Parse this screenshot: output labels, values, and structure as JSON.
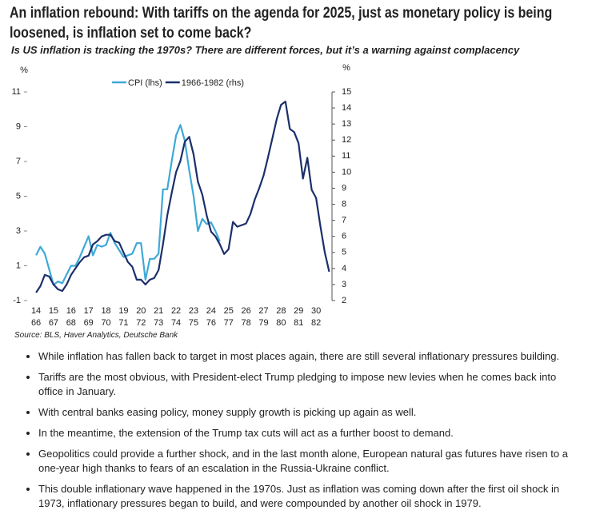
{
  "header": {
    "title": "An inflation rebound: With tariffs on the agenda for 2025, just as monetary policy is being loosened, is inflation set to come back?",
    "subtitle": "Is US inflation is tracking the 1970s? There are different forces, but it’s a warning against complacency"
  },
  "chart_data": {
    "type": "line",
    "y_label": "%",
    "y2_label": "%",
    "xlim": [
      13.86,
      30.91
    ],
    "xticks": [
      14,
      15,
      16,
      17,
      18,
      19,
      20,
      21,
      22,
      23,
      24,
      25,
      26,
      27,
      28,
      29,
      30
    ],
    "x2lim": [
      65.86,
      82.91
    ],
    "x2ticks": [
      66,
      67,
      68,
      69,
      70,
      71,
      72,
      73,
      74,
      75,
      76,
      77,
      78,
      79,
      80,
      81,
      82
    ],
    "ylim": [
      -1,
      11
    ],
    "yticks": [
      -1,
      1,
      3,
      5,
      7,
      9,
      11
    ],
    "y2lim": [
      2,
      15
    ],
    "y2ticks": [
      2,
      3,
      4,
      5,
      6,
      7,
      8,
      9,
      10,
      11,
      12,
      13,
      14,
      15
    ],
    "series": [
      {
        "name": "CPI (lhs)",
        "color": "#3fa9d6",
        "x": [
          14,
          14.25,
          14.5,
          14.75,
          15,
          15.25,
          15.5,
          15.75,
          16,
          16.25,
          16.5,
          16.75,
          17,
          17.25,
          17.5,
          17.75,
          18,
          18.25,
          18.5,
          18.75,
          19,
          19.25,
          19.5,
          19.75,
          20,
          20.25,
          20.5,
          20.75,
          21,
          21.25,
          21.5,
          21.75,
          22,
          22.25,
          22.5,
          22.75,
          23,
          23.25,
          23.5,
          23.75,
          24,
          24.25,
          24.5
        ],
        "values": [
          1.6,
          2.1,
          1.7,
          0.8,
          -0.1,
          0.1,
          0,
          0.5,
          1,
          1,
          1.5,
          2.1,
          2.7,
          1.6,
          2.2,
          2.1,
          2.2,
          2.9,
          2.3,
          1.9,
          1.5,
          1.6,
          1.7,
          2.3,
          2.3,
          0.2,
          1.4,
          1.4,
          1.7,
          5.4,
          5.4,
          7,
          8.5,
          9.1,
          8.2,
          6.5,
          5,
          3,
          3.7,
          3.4,
          3.5,
          3,
          2.4
        ]
      },
      {
        "name": "1966-1982 (rhs)",
        "color": "#1b2f6b",
        "axis": "y2",
        "x": [
          66,
          66.25,
          66.5,
          66.75,
          67,
          67.25,
          67.5,
          67.75,
          68,
          68.25,
          68.5,
          68.75,
          69,
          69.25,
          69.5,
          69.75,
          70,
          70.25,
          70.5,
          70.75,
          71,
          71.25,
          71.5,
          71.75,
          72,
          72.25,
          72.5,
          72.75,
          73,
          73.25,
          73.5,
          73.75,
          74,
          74.25,
          74.5,
          74.75,
          75,
          75.25,
          75.5,
          75.75,
          76,
          76.25,
          76.5,
          76.75,
          77,
          77.25,
          77.5,
          77.75,
          78,
          78.25,
          78.5,
          78.75,
          79,
          79.25,
          79.5,
          79.75,
          80,
          80.25,
          80.5,
          80.75,
          81,
          81.25,
          81.5,
          81.75,
          82,
          82.25,
          82.5,
          82.75
        ],
        "values": [
          2.5,
          2.9,
          3.6,
          3.5,
          3,
          2.7,
          2.6,
          3,
          3.6,
          4,
          4.4,
          4.7,
          4.8,
          5.5,
          5.7,
          6,
          6.1,
          6.1,
          5.7,
          5.6,
          5,
          4.4,
          4.1,
          3.3,
          3.3,
          3,
          3.3,
          3.4,
          3.9,
          5.5,
          7.3,
          8.7,
          10,
          10.7,
          11.9,
          12.2,
          11.1,
          9.4,
          8.6,
          7.3,
          6.3,
          6,
          5.5,
          4.9,
          5.2,
          6.9,
          6.6,
          6.7,
          6.8,
          7.4,
          8.3,
          9,
          9.8,
          10.9,
          12.1,
          13.3,
          14.2,
          14.4,
          12.7,
          12.5,
          11.8,
          9.6,
          10.9,
          8.9,
          8.4,
          6.6,
          5,
          3.8
        ]
      }
    ],
    "source": "Source: BLS, Haver Analytics, Deutsche Bank"
  },
  "bullets": [
    "While inflation has fallen back to target in most places again, there are still several inflationary pressures building.",
    "Tariffs are the most obvious, with President-elect Trump pledging to impose new levies when he comes back into office in January.",
    "With central banks easing policy, money supply growth is picking up again as well.",
    "In the meantime, the extension of the Trump tax cuts will act as a further boost to demand.",
    "Geopolitics could provide a further shock, and in the last month alone, European natural gas futures have risen to a one-year high thanks to fears of an escalation in the Russia-Ukraine conflict.",
    "This double inflationary wave happened in the 1970s. Just as inflation was coming down after the first oil shock in 1973, inflationary pressures began to build, and were compounded by another oil shock in 1979."
  ]
}
